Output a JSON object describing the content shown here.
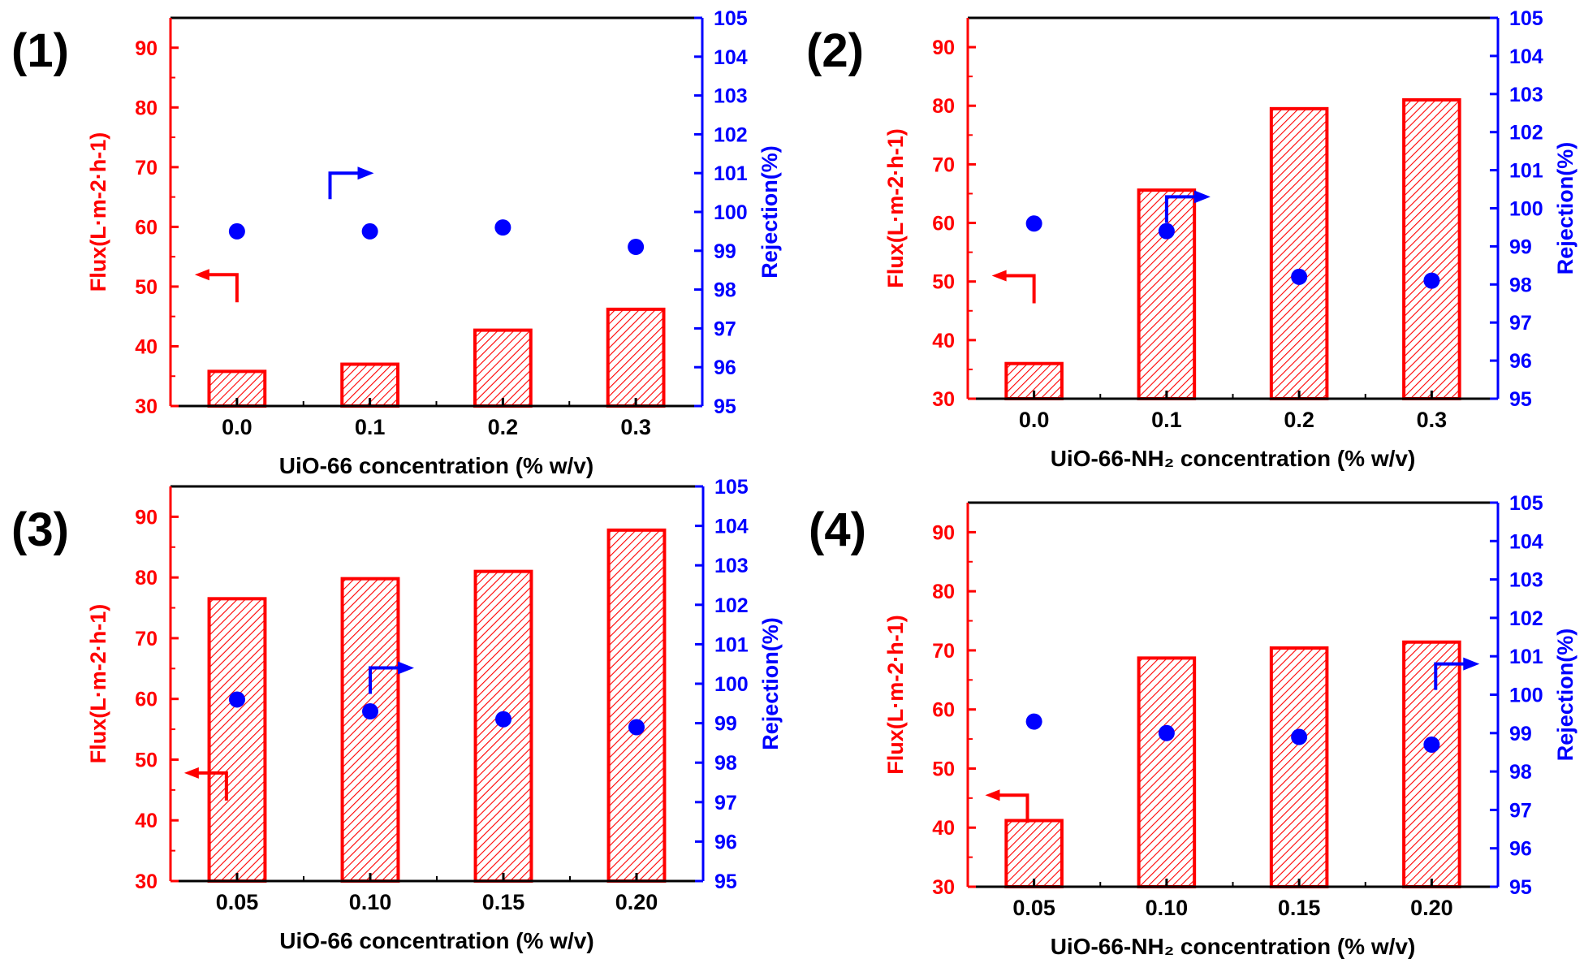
{
  "colors": {
    "flux": "#ff0000",
    "rejection": "#0000ff",
    "frame": "#000000"
  },
  "chart_data": [
    {
      "type": "bar",
      "panel_label": "(1)",
      "categories": [
        "0.0",
        "0.1",
        "0.2",
        "0.3"
      ],
      "xlabel": "UiO-66 concentration (% w/v)",
      "ylabel": "Flux(L·m-2·h-1)",
      "y2label": "Rejection(%)",
      "ylim": [
        30,
        95
      ],
      "y2lim": [
        95,
        105
      ],
      "yticks": [
        30,
        40,
        50,
        60,
        70,
        80,
        90
      ],
      "y2ticks": [
        95,
        96,
        97,
        98,
        99,
        100,
        101,
        102,
        103,
        104,
        105
      ],
      "series": [
        {
          "name": "Flux",
          "type": "bar",
          "axis": "left",
          "values": [
            35.8,
            37.0,
            42.7,
            46.2
          ]
        },
        {
          "name": "Rejection",
          "type": "scatter",
          "axis": "right",
          "values": [
            99.5,
            99.5,
            99.6,
            99.1
          ]
        }
      ],
      "annotations": {
        "left_arrow": {
          "x": 0.0,
          "y": 52,
          "points_to": "left"
        },
        "right_arrow": {
          "x": 0.7,
          "y": 101.0,
          "points_to": "right"
        }
      }
    },
    {
      "type": "bar",
      "panel_label": "(2)",
      "categories": [
        "0.0",
        "0.1",
        "0.2",
        "0.3"
      ],
      "xlabel": "UiO-66-NH₂ concentration (% w/v)",
      "ylabel": "Flux(L·m-2·h-1)",
      "y2label": "Rejection(%)",
      "ylim": [
        30,
        95
      ],
      "y2lim": [
        95,
        105
      ],
      "yticks": [
        30,
        40,
        50,
        60,
        70,
        80,
        90
      ],
      "y2ticks": [
        95,
        96,
        97,
        98,
        99,
        100,
        101,
        102,
        103,
        104,
        105
      ],
      "series": [
        {
          "name": "Flux",
          "type": "bar",
          "axis": "left",
          "values": [
            36.0,
            65.6,
            79.5,
            81.0
          ]
        },
        {
          "name": "Rejection",
          "type": "scatter",
          "axis": "right",
          "values": [
            99.6,
            99.4,
            98.2,
            98.1
          ]
        }
      ],
      "annotations": {
        "left_arrow": {
          "x": 0.0,
          "y": 51,
          "points_to": "left"
        },
        "right_arrow": {
          "x": 1.0,
          "y": 100.3,
          "points_to": "right"
        }
      }
    },
    {
      "type": "bar",
      "panel_label": "(3)",
      "categories": [
        "0.05",
        "0.10",
        "0.15",
        "0.20"
      ],
      "xlabel": "UiO-66 concentration (% w/v)",
      "ylabel": "Flux(L·m-2·h-1)",
      "y2label": "Rejection(%)",
      "ylim": [
        30,
        95
      ],
      "y2lim": [
        95,
        105
      ],
      "yticks": [
        30,
        40,
        50,
        60,
        70,
        80,
        90
      ],
      "y2ticks": [
        95,
        96,
        97,
        98,
        99,
        100,
        101,
        102,
        103,
        104,
        105
      ],
      "series": [
        {
          "name": "Flux",
          "type": "bar",
          "axis": "left",
          "values": [
            76.5,
            79.8,
            81.0,
            87.8
          ]
        },
        {
          "name": "Rejection",
          "type": "scatter",
          "axis": "right",
          "values": [
            99.6,
            99.3,
            99.1,
            98.9
          ]
        }
      ],
      "annotations": {
        "left_arrow": {
          "x": -0.08,
          "y": 47.8,
          "points_to": "left"
        },
        "right_arrow": {
          "x": 1.0,
          "y": 100.4,
          "points_to": "right"
        }
      }
    },
    {
      "type": "bar",
      "panel_label": "(4)",
      "categories": [
        "0.05",
        "0.10",
        "0.15",
        "0.20"
      ],
      "xlabel": "UiO-66-NH₂ concentration (% w/v)",
      "ylabel": "Flux(L·m-2·h-1)",
      "y2label": "Rejection(%)",
      "ylim": [
        30,
        95
      ],
      "y2lim": [
        95,
        105
      ],
      "yticks": [
        30,
        40,
        50,
        60,
        70,
        80,
        90
      ],
      "y2ticks": [
        95,
        96,
        97,
        98,
        99,
        100,
        101,
        102,
        103,
        104,
        105
      ],
      "series": [
        {
          "name": "Flux",
          "type": "bar",
          "axis": "left",
          "values": [
            41.2,
            68.7,
            70.4,
            71.4
          ]
        },
        {
          "name": "Rejection",
          "type": "scatter",
          "axis": "right",
          "values": [
            99.3,
            99.0,
            98.9,
            98.7
          ]
        }
      ],
      "annotations": {
        "left_arrow": {
          "x": -0.05,
          "y": 45.5,
          "points_to": "left"
        },
        "right_arrow": {
          "x": 3.03,
          "y": 100.8,
          "points_to": "right"
        }
      }
    }
  ]
}
